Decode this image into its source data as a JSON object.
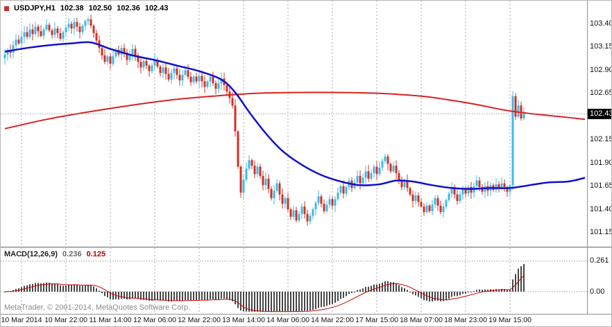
{
  "header": {
    "symbol": "USDJPY,H1",
    "open": "102.38",
    "high": "102.50",
    "low": "102.36",
    "close": "102.43"
  },
  "price_axis": {
    "current": 102.43,
    "current_label": "102.43"
  },
  "macd_panel": {
    "name": "MACD(12,26,9)",
    "macd_value": "0.236",
    "signal_value": "0.125",
    "levels": [
      {
        "label": "0.261",
        "value": 0.261
      },
      {
        "label": "0.00",
        "value": 0
      }
    ]
  },
  "footer": {
    "copyright": "MetaTrader, © 2001-2014, MetaQuotes Software Corp."
  },
  "colors": {
    "background": "#ffffff",
    "bull": "#3eb8e8",
    "bear": "#cf3026",
    "ma_fast": "#1010cc",
    "ma_slow": "#d82020",
    "macd_hist": "#464646",
    "macd_signal": "#cc0000",
    "grid": "#a8a8a8",
    "price_line": "#999999",
    "badge_bg": "#000000",
    "badge_text": "#ffffff"
  },
  "chart_data": {
    "type": "candlestick",
    "title": "USDJPY,H1",
    "x_axis": {
      "labels": [
        "10 Mar 2014",
        "10 Mar 22:00",
        "11 Mar 14:00",
        "12 Mar 06:00",
        "12 Mar 22:00",
        "13 Mar 14:00",
        "14 Mar 06:00",
        "14 Mar 22:00",
        "17 Mar 15:00",
        "18 Mar 07:00",
        "18 Mar 23:00",
        "19 Mar 15:00"
      ],
      "label_candle_indices": [
        6,
        22,
        38,
        54,
        70,
        86,
        102,
        118,
        134,
        150,
        166,
        182
      ]
    },
    "y_axis": {
      "min": 101.02,
      "max": 103.62,
      "tick_step": 0.25,
      "ticks": [
        103.4,
        103.15,
        102.9,
        102.65,
        102.4,
        102.15,
        101.9,
        101.65,
        101.4,
        101.15
      ]
    },
    "closes": [
      103.07,
      103.12,
      103.09,
      103.17,
      103.23,
      103.19,
      103.26,
      103.31,
      103.26,
      103.34,
      103.29,
      103.37,
      103.32,
      103.27,
      103.34,
      103.39,
      103.33,
      103.28,
      103.35,
      103.3,
      103.24,
      103.31,
      103.36,
      103.4,
      103.35,
      103.42,
      103.37,
      103.31,
      103.38,
      103.43,
      103.45,
      103.38,
      103.3,
      103.22,
      103.14,
      103.06,
      102.99,
      103.05,
      102.97,
      103.05,
      103.12,
      103.07,
      103.14,
      103.09,
      103.01,
      103.07,
      103.13,
      103.06,
      102.99,
      102.93,
      103.0,
      102.95,
      102.89,
      102.95,
      103.01,
      102.94,
      102.87,
      102.93,
      102.86,
      102.8,
      102.87,
      102.92,
      102.85,
      102.79,
      102.85,
      102.9,
      102.83,
      102.77,
      102.83,
      102.78,
      102.84,
      102.78,
      102.72,
      102.78,
      102.83,
      102.76,
      102.7,
      102.76,
      102.81,
      102.74,
      102.67,
      102.6,
      102.52,
      102.24,
      101.86,
      101.58,
      101.72,
      101.84,
      101.93,
      101.87,
      101.78,
      101.86,
      101.76,
      101.66,
      101.73,
      101.62,
      101.52,
      101.6,
      101.68,
      101.56,
      101.46,
      101.52,
      101.4,
      101.32,
      101.39,
      101.28,
      101.35,
      101.43,
      101.35,
      101.27,
      101.33,
      101.4,
      101.47,
      101.54,
      101.46,
      101.38,
      101.45,
      101.51,
      101.44,
      101.51,
      101.58,
      101.65,
      101.57,
      101.64,
      101.71,
      101.63,
      101.69,
      101.76,
      101.68,
      101.74,
      101.81,
      101.73,
      101.79,
      101.86,
      101.78,
      101.85,
      101.92,
      101.97,
      101.89,
      101.81,
      101.87,
      101.79,
      101.71,
      101.64,
      101.71,
      101.63,
      101.56,
      101.49,
      101.55,
      101.48,
      101.43,
      101.37,
      101.44,
      101.38,
      101.45,
      101.52,
      101.44,
      101.37,
      101.43,
      101.5,
      101.57,
      101.64,
      101.56,
      101.49,
      101.56,
      101.63,
      101.57,
      101.64,
      101.58,
      101.65,
      101.71,
      101.64,
      101.59,
      101.65,
      101.6,
      101.66,
      101.61,
      101.67,
      101.62,
      101.68,
      101.64,
      101.59,
      101.66,
      102.62,
      102.4,
      102.52,
      102.38,
      102.43
    ],
    "last_candle": {
      "open": 102.38,
      "high": 102.5,
      "low": 102.36,
      "close": 102.43
    },
    "ma_fast_blue": {
      "points": [
        [
          0,
          103.1
        ],
        [
          8,
          103.14
        ],
        [
          16,
          103.17
        ],
        [
          24,
          103.19
        ],
        [
          31,
          103.2
        ],
        [
          38,
          103.13
        ],
        [
          46,
          103.06
        ],
        [
          54,
          103.01
        ],
        [
          62,
          102.95
        ],
        [
          70,
          102.89
        ],
        [
          78,
          102.8
        ],
        [
          83,
          102.66
        ],
        [
          88,
          102.45
        ],
        [
          94,
          102.22
        ],
        [
          100,
          102.03
        ],
        [
          107,
          101.88
        ],
        [
          114,
          101.77
        ],
        [
          121,
          101.7
        ],
        [
          128,
          101.66
        ],
        [
          135,
          101.67
        ],
        [
          141,
          101.71
        ],
        [
          147,
          101.7
        ],
        [
          154,
          101.66
        ],
        [
          161,
          101.63
        ],
        [
          168,
          101.62
        ],
        [
          175,
          101.63
        ],
        [
          182,
          101.63
        ],
        [
          189,
          101.66
        ],
        [
          196,
          101.69
        ],
        [
          203,
          101.7
        ],
        [
          209,
          101.74
        ]
      ]
    },
    "ma_slow_red": {
      "points": [
        [
          0,
          102.27
        ],
        [
          15,
          102.37
        ],
        [
          30,
          102.45
        ],
        [
          45,
          102.52
        ],
        [
          60,
          102.58
        ],
        [
          75,
          102.62
        ],
        [
          90,
          102.65
        ],
        [
          105,
          102.66
        ],
        [
          120,
          102.66
        ],
        [
          135,
          102.65
        ],
        [
          150,
          102.62
        ],
        [
          160,
          102.58
        ],
        [
          170,
          102.53
        ],
        [
          180,
          102.47
        ],
        [
          190,
          102.43
        ],
        [
          200,
          102.4
        ],
        [
          209,
          102.37
        ]
      ]
    },
    "macd": {
      "type": "histogram+line",
      "params": [
        12,
        26,
        9
      ],
      "current_macd": 0.236,
      "current_signal": 0.125,
      "derivation": "MACD = EMA12(close) - EMA26(close); signal = EMA9(MACD); normalized so last histogram bar equals 0.236"
    }
  }
}
